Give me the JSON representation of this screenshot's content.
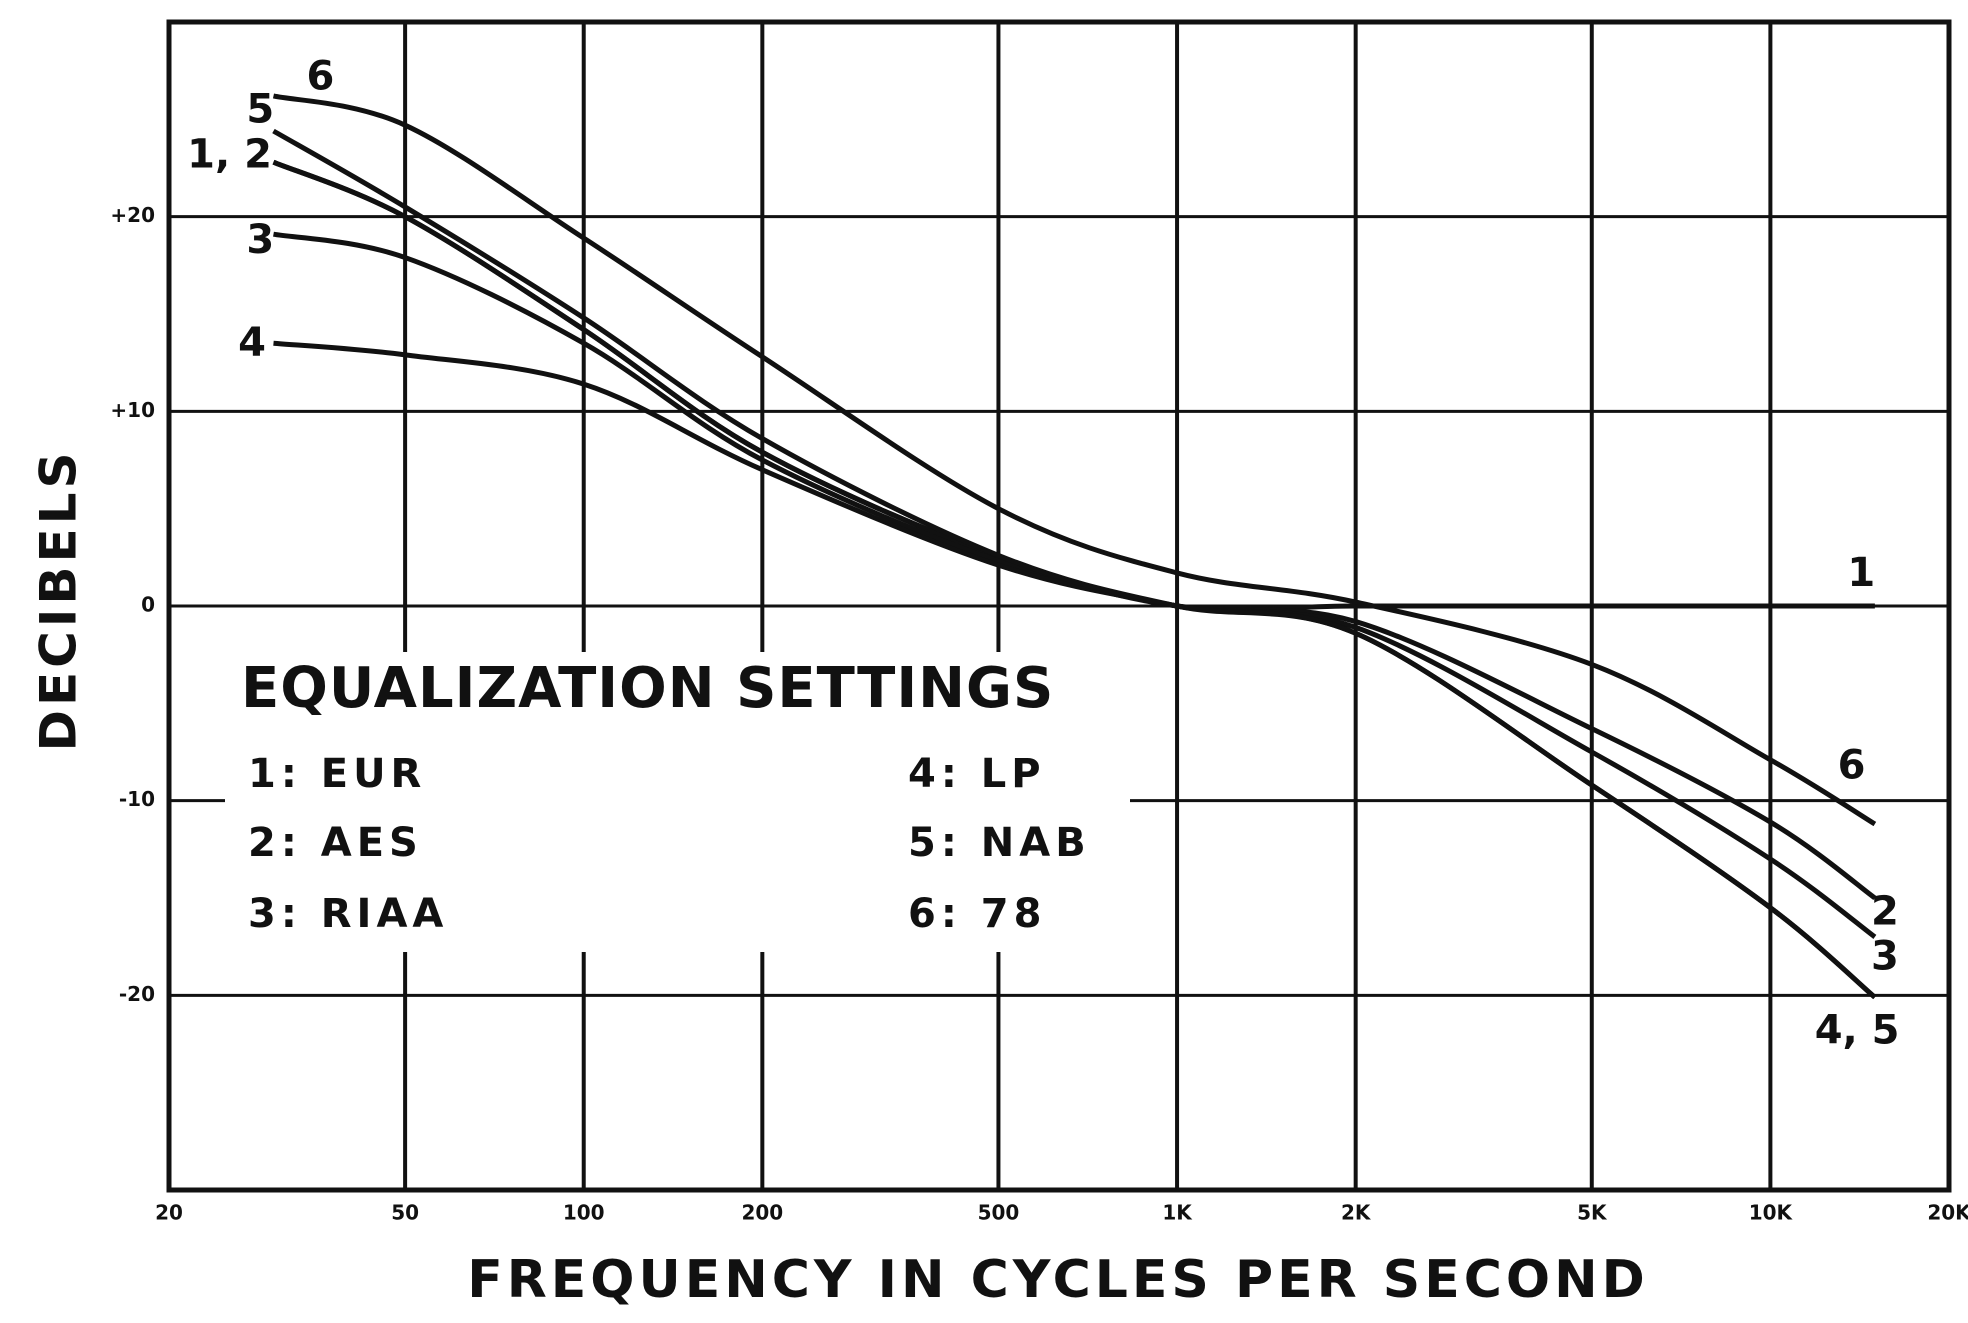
{
  "chart_data": {
    "type": "line",
    "xlabel": "FREQUENCY IN CYCLES PER SECOND",
    "ylabel": "DECIBELS",
    "legend_title": "EQUALIZATION SETTINGS",
    "log_x": true,
    "grid": true,
    "color": "#111111",
    "x": [
      30,
      50,
      100,
      200,
      500,
      1000,
      2000,
      5000,
      10000,
      15000
    ],
    "series": [
      {
        "name": "1: EUR",
        "color": "#111111",
        "values": [
          22.8,
          20,
          14.2,
          7.9,
          2.5,
          0,
          0,
          0,
          0,
          0
        ]
      },
      {
        "name": "2: AES",
        "color": "#111111",
        "values": [
          22.8,
          20,
          14.2,
          7.9,
          2.5,
          0,
          -0.8,
          -6.3,
          -11.1,
          -15
        ]
      },
      {
        "name": "3: RIAA",
        "color": "#111111",
        "values": [
          19.1,
          17.9,
          13.5,
          7.5,
          2.3,
          0,
          -1.1,
          -7.5,
          -13,
          -17
        ]
      },
      {
        "name": "4: LP",
        "color": "#111111",
        "values": [
          13.5,
          12.9,
          11.4,
          7,
          2.1,
          0,
          -1.4,
          -9.2,
          -15.5,
          -20.1
        ]
      },
      {
        "name": "5: NAB",
        "color": "#111111",
        "values": [
          24.4,
          20.5,
          14.8,
          8.6,
          2.6,
          0,
          -1.4,
          -9.2,
          -15.5,
          -20.1
        ]
      },
      {
        "name": "6: 78",
        "color": "#111111",
        "values": [
          26.2,
          24.7,
          18.9,
          12.8,
          5,
          1.7,
          0.2,
          -3,
          -7.9,
          -11.2
        ]
      }
    ],
    "annotations": [
      {
        "text": "6",
        "x": 36,
        "y": 27.1
      },
      {
        "text": "5",
        "x": 28.5,
        "y": 25.4
      },
      {
        "text": "1, 2",
        "x": 25.3,
        "y": 23.1
      },
      {
        "text": "3",
        "x": 28.5,
        "y": 18.7
      },
      {
        "text": "4",
        "x": 27.6,
        "y": 13.4
      },
      {
        "text": "1",
        "x": 14230,
        "y": 1.6
      },
      {
        "text": "6",
        "x": 13700,
        "y": -8.3
      },
      {
        "text": "2",
        "x": 15600,
        "y": -15.8
      },
      {
        "text": "3",
        "x": 15600,
        "y": -18.1
      },
      {
        "text": "4, 5",
        "x": 14000,
        "y": -21.9
      }
    ],
    "xlim": [
      20,
      20000
    ],
    "xticks": [
      20,
      50,
      100,
      200,
      500,
      {
        "value": 1000,
        "label": "1K"
      },
      {
        "value": 2000,
        "label": "2K"
      },
      {
        "value": 5000,
        "label": "5K"
      },
      {
        "value": 10000,
        "label": "10K"
      },
      {
        "value": 20000,
        "label": "20K"
      }
    ],
    "ylim": [
      -30,
      30
    ],
    "yticks": [
      {
        "value": 20,
        "label": "+20"
      },
      {
        "value": 10,
        "label": "+10"
      },
      0,
      -10,
      -20
    ]
  }
}
